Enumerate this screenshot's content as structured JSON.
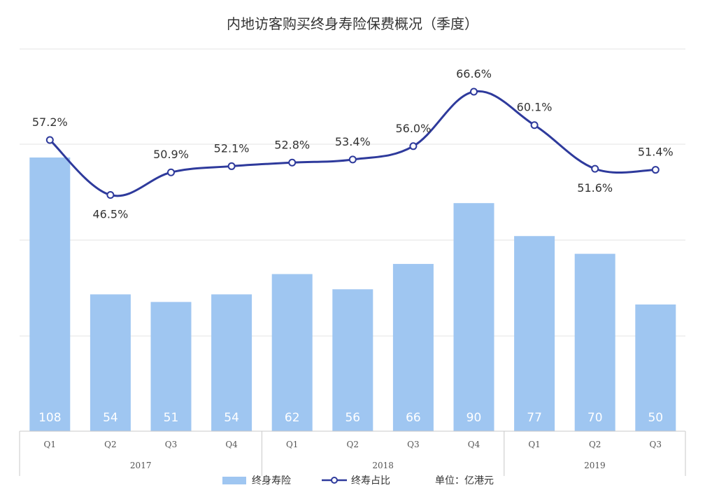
{
  "chart_data": {
    "type": "bar",
    "title": "内地访客购买终身寿险保费概况（季度）",
    "categories": [
      "Q1",
      "Q2",
      "Q3",
      "Q4",
      "Q1",
      "Q2",
      "Q3",
      "Q4",
      "Q1",
      "Q2",
      "Q3"
    ],
    "years": [
      {
        "label": "2017",
        "quarters": 4
      },
      {
        "label": "2018",
        "quarters": 4
      },
      {
        "label": "2019",
        "quarters": 3
      }
    ],
    "series": [
      {
        "name": "终身寿险",
        "type": "bar",
        "color": "#9fc6f1",
        "values": [
          108,
          54,
          51,
          54,
          62,
          56,
          66,
          90,
          77,
          70,
          50
        ],
        "labels": [
          "108",
          "54",
          "51",
          "54",
          "62",
          "56",
          "66",
          "90",
          "77",
          "70",
          "50"
        ]
      },
      {
        "name": "终寿占比",
        "type": "line",
        "color": "#2e3a9c",
        "values": [
          57.2,
          46.5,
          50.9,
          52.1,
          52.8,
          53.4,
          56.0,
          66.6,
          60.1,
          51.6,
          51.4
        ],
        "labels": [
          "57.2%",
          "46.5%",
          "50.9%",
          "52.1%",
          "52.8%",
          "53.4%",
          "56.0%",
          "66.6%",
          "60.1%",
          "51.6%",
          "51.4%"
        ]
      }
    ],
    "unit_note": "单位：亿港元",
    "grid": true,
    "legend_position": "bottom"
  }
}
